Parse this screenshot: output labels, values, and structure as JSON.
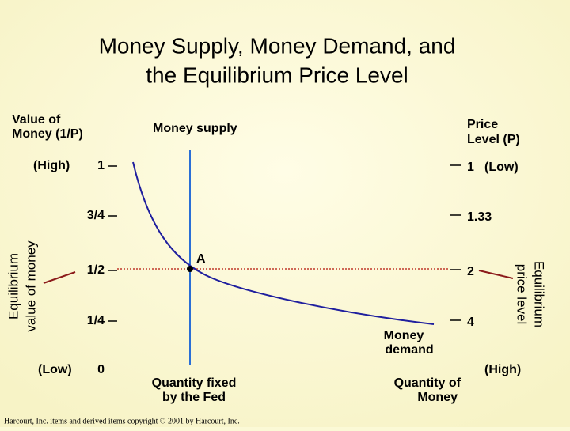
{
  "header": {
    "title_lines": [
      "Money Supply, Money Demand, and",
      "the Equilibrium Price Level"
    ]
  },
  "left_axis": {
    "title_lines": [
      "Value of",
      "Money (1/P)"
    ],
    "side_label_lines": [
      "Equilibrium",
      "value of money"
    ],
    "high": "(High)",
    "low": "(Low)",
    "ticks": [
      "1",
      "3/4",
      "1/2",
      "1/4",
      "0"
    ]
  },
  "right_axis": {
    "title_lines": [
      "Price",
      "Level (P)"
    ],
    "side_label_lines": [
      "Equilibrium",
      "price level"
    ],
    "low": "(Low)",
    "high": "(High)",
    "ticks": [
      "1",
      "1.33",
      "2",
      "4"
    ]
  },
  "labels": {
    "supply": "Money supply",
    "point": "A",
    "demand_lines": [
      "Money",
      "demand"
    ],
    "fixed_lines": [
      "Quantity fixed",
      "by the Fed"
    ],
    "quantity_lines": [
      "Quantity of",
      "Money"
    ]
  },
  "footer": {
    "copyright": "Harcourt, Inc. items and derived items copyright © 2001 by Harcourt, Inc."
  }
}
